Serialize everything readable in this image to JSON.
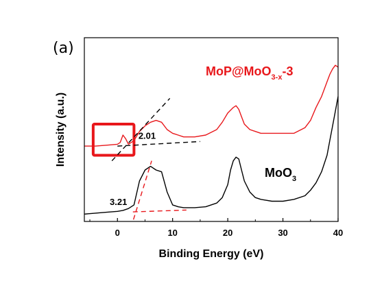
{
  "panel_label": "(a)",
  "colors": {
    "moo3": "#000000",
    "mop": "#e8171b",
    "highlight": "#e8171b",
    "fit_black": "#000000",
    "fit_red": "#e8171b"
  },
  "chart_data": {
    "type": "line",
    "title": "",
    "xlabel": "Binding Energy (eV)",
    "ylabel": "Intensity (a.u.)",
    "xlim": [
      -6,
      40
    ],
    "ylim": [
      0,
      100
    ],
    "xticks": [
      0,
      10,
      20,
      30,
      40
    ],
    "yticks_shown": false,
    "grid": false,
    "series": [
      {
        "name": "MoO3",
        "label_main": "MoO",
        "label_sub": "3",
        "color": "#000000",
        "x": [
          -6,
          -4,
          -2,
          0,
          1,
          2,
          3,
          4,
          5,
          6,
          7,
          8,
          9,
          10,
          11,
          12,
          14,
          16,
          18,
          19,
          20,
          20.5,
          21,
          21.5,
          22,
          22.5,
          23,
          24,
          25,
          26,
          28,
          30,
          32,
          34,
          35,
          36,
          37,
          38,
          38.5,
          39,
          39.5,
          40
        ],
        "y": [
          4,
          4.5,
          5,
          5.5,
          6,
          7,
          9,
          22,
          28,
          30,
          28,
          27,
          16,
          9,
          8,
          7.5,
          7.5,
          8,
          10,
          13,
          20,
          28,
          33,
          35,
          34,
          28,
          22,
          16,
          13,
          12,
          11,
          11,
          12,
          14,
          17,
          21,
          27,
          36,
          44,
          52,
          60,
          68
        ]
      },
      {
        "name": "MoP@MoO3-x-3",
        "label_main": "MoP@MoO",
        "label_sub": "3-x",
        "label_suffix": "-3",
        "color": "#e8171b",
        "x": [
          -6,
          -4,
          -2,
          0,
          0.5,
          1,
          1.5,
          2,
          3,
          4,
          5,
          6,
          7,
          8,
          9,
          10,
          11,
          12,
          14,
          16,
          18,
          19,
          20,
          21,
          21.5,
          22,
          22.5,
          23,
          24,
          25,
          26,
          28,
          30,
          32,
          34,
          35,
          36,
          37,
          38,
          38.5,
          39,
          39.5,
          40
        ],
        "y": [
          41,
          41,
          41.5,
          42,
          43,
          47,
          45,
          42,
          44,
          49,
          52,
          54,
          55,
          54,
          50,
          48,
          47,
          46,
          46,
          47,
          50,
          54,
          59,
          62,
          63,
          61,
          57,
          53,
          50,
          49,
          48,
          48,
          48,
          48,
          51,
          55,
          62,
          68,
          76,
          80,
          83,
          85,
          84
        ]
      }
    ],
    "annotations": [
      {
        "text": "2.01",
        "x": 3.8,
        "y": 45
      },
      {
        "text": "3.21",
        "x": -1.4,
        "y": 9
      }
    ],
    "tangent_lines": [
      {
        "series": "MoP@MoO3-x-3",
        "style": "dashed",
        "color": "#000000",
        "x1": -1,
        "y1": 33,
        "x2": 9.5,
        "y2": 67
      },
      {
        "series": "MoP@MoO3-x-3",
        "style": "dashed",
        "color": "#000000",
        "x1": 0,
        "y1": 41,
        "x2": 15,
        "y2": 43.5
      },
      {
        "series": "MoO3",
        "style": "dashed",
        "color": "#e8171b",
        "x1": 2.9,
        "y1": 1,
        "x2": 6.2,
        "y2": 33
      },
      {
        "series": "MoO3",
        "style": "dashed",
        "color": "#e8171b",
        "x1": 2.8,
        "y1": 5.2,
        "x2": 12.5,
        "y2": 6.2
      }
    ],
    "highlight_box": {
      "x0": -4.4,
      "x1": 3.0,
      "y0": 36,
      "y1": 53
    }
  }
}
